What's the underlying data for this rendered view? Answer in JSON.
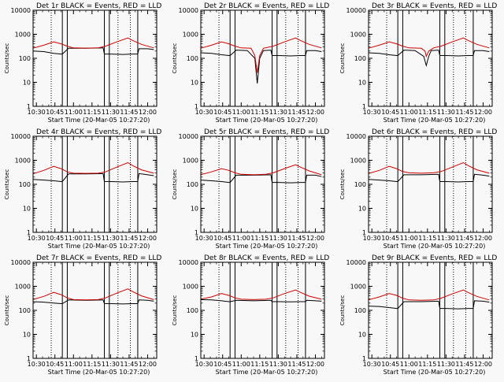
{
  "chart_data": [
    {
      "type": "line",
      "title": "Det 1r BLACK = Events, RED = LLD",
      "xlabel": "Start Time (20-Mar-05 10:27:20)",
      "ylabel": "Counts/sec",
      "x_ticks": [
        "10:30",
        "10:45",
        "11:00",
        "11:15",
        "11:30",
        "11:45",
        "12:00"
      ],
      "y_ticks": [
        "1",
        "10",
        "100",
        "1000",
        "10000"
      ],
      "y_scale": "log",
      "ylim": [
        1,
        10000
      ],
      "xlim": [
        "10:27:20",
        "12:07:20"
      ],
      "grid": false,
      "dotted_vlines": [
        "10:42",
        "11:36",
        "11:46"
      ],
      "solid_vlines": [
        "10:51",
        "10:55",
        "11:25",
        "11:29",
        "11:52"
      ],
      "series": [
        {
          "color": "#000000",
          "x": [
            "10:27",
            "10:36",
            "10:44",
            "10:50",
            "10:51",
            "10:56",
            "11:10",
            "11:24",
            "11:25",
            "11:30",
            "11:40",
            "11:48",
            "11:52",
            "11:53",
            "12:00",
            "12:05"
          ],
          "y": [
            200,
            190,
            160,
            150,
            150,
            260,
            260,
            270,
            150,
            150,
            145,
            150,
            150,
            250,
            250,
            230
          ]
        },
        {
          "color": "#cc0000",
          "x": [
            "10:27",
            "10:36",
            "10:44",
            "10:50",
            "10:55",
            "11:00",
            "11:10",
            "11:20",
            "11:26",
            "11:35",
            "11:44",
            "11:48",
            "11:55",
            "12:05"
          ],
          "y": [
            260,
            350,
            480,
            400,
            320,
            270,
            265,
            270,
            320,
            480,
            700,
            550,
            380,
            270
          ]
        }
      ]
    },
    {
      "type": "line",
      "title": "Det 2r BLACK = Events, RED = LLD",
      "xlabel": "Start Time (20-Mar-05 10:27:20)",
      "ylabel": "Counts/sec",
      "x_ticks": [
        "10:30",
        "10:45",
        "11:00",
        "11:15",
        "11:30",
        "11:45",
        "12:00"
      ],
      "y_ticks": [
        "1",
        "10",
        "100",
        "1000",
        "10000"
      ],
      "y_scale": "log",
      "ylim": [
        1,
        10000
      ],
      "xlim": [
        "10:27:20",
        "12:07:20"
      ],
      "grid": false,
      "dotted_vlines": [
        "10:42",
        "11:36",
        "11:46"
      ],
      "solid_vlines": [
        "10:51",
        "10:55",
        "11:25",
        "11:29",
        "11:52"
      ],
      "series": [
        {
          "color": "#000000",
          "x": [
            "10:27",
            "10:36",
            "10:44",
            "10:50",
            "10:51",
            "10:56",
            "11:05",
            "11:11",
            "11:13",
            "11:15",
            "11:18",
            "11:24",
            "11:25",
            "11:30",
            "11:40",
            "11:48",
            "11:52",
            "11:53",
            "12:00",
            "12:05"
          ],
          "y": [
            170,
            160,
            140,
            130,
            130,
            220,
            210,
            100,
            9,
            100,
            210,
            220,
            130,
            130,
            125,
            130,
            130,
            210,
            210,
            190
          ]
        },
        {
          "color": "#cc0000",
          "x": [
            "10:27",
            "10:36",
            "10:44",
            "10:50",
            "10:55",
            "11:00",
            "11:08",
            "11:11",
            "11:13",
            "11:15",
            "11:18",
            "11:26",
            "11:35",
            "11:44",
            "11:48",
            "11:55",
            "12:05"
          ],
          "y": [
            260,
            350,
            480,
            400,
            320,
            270,
            260,
            130,
            25,
            130,
            260,
            320,
            480,
            700,
            550,
            380,
            270
          ]
        }
      ]
    },
    {
      "type": "line",
      "title": "Det 3r BLACK = Events, RED = LLD",
      "xlabel": "Start Time (20-Mar-05 10:27:20)",
      "ylabel": "Counts/sec",
      "x_ticks": [
        "10:30",
        "10:45",
        "11:00",
        "11:15",
        "11:30",
        "11:45",
        "12:00"
      ],
      "y_ticks": [
        "1",
        "10",
        "100",
        "1000",
        "10000"
      ],
      "y_scale": "log",
      "ylim": [
        1,
        10000
      ],
      "xlim": [
        "10:27:20",
        "12:07:20"
      ],
      "grid": false,
      "dotted_vlines": [
        "10:42",
        "11:36",
        "11:46"
      ],
      "solid_vlines": [
        "10:51",
        "10:55",
        "11:25",
        "11:29",
        "11:52"
      ],
      "series": [
        {
          "color": "#000000",
          "x": [
            "10:27",
            "10:36",
            "10:44",
            "10:50",
            "10:51",
            "10:56",
            "11:05",
            "11:12",
            "11:14",
            "11:16",
            "11:18",
            "11:24",
            "11:25",
            "11:30",
            "11:40",
            "11:48",
            "11:52",
            "11:53",
            "12:00",
            "12:05"
          ],
          "y": [
            170,
            160,
            140,
            130,
            130,
            220,
            210,
            120,
            50,
            120,
            210,
            220,
            130,
            130,
            125,
            130,
            130,
            210,
            210,
            190
          ]
        },
        {
          "color": "#cc0000",
          "x": [
            "10:27",
            "10:36",
            "10:44",
            "10:50",
            "10:55",
            "11:00",
            "11:10",
            "11:13",
            "11:14",
            "11:16",
            "11:20",
            "11:26",
            "11:35",
            "11:44",
            "11:48",
            "11:55",
            "12:05"
          ],
          "y": [
            260,
            350,
            480,
            400,
            320,
            270,
            260,
            200,
            120,
            200,
            270,
            320,
            480,
            700,
            550,
            380,
            270
          ]
        }
      ]
    },
    {
      "type": "line",
      "title": "Det 4r BLACK = Events, RED = LLD",
      "xlabel": "Start Time (20-Mar-05 10:27:20)",
      "ylabel": "Counts/sec",
      "x_ticks": [
        "10:30",
        "10:45",
        "11:00",
        "11:15",
        "11:30",
        "11:45",
        "12:00"
      ],
      "y_ticks": [
        "1",
        "10",
        "100",
        "1000",
        "10000"
      ],
      "y_scale": "log",
      "ylim": [
        1,
        10000
      ],
      "xlim": [
        "10:27:20",
        "12:07:20"
      ],
      "grid": false,
      "dotted_vlines": [
        "10:42",
        "11:36",
        "11:46"
      ],
      "solid_vlines": [
        "10:51",
        "10:55",
        "11:25",
        "11:29",
        "11:52"
      ],
      "series": [
        {
          "color": "#000000",
          "x": [
            "10:27",
            "10:36",
            "10:44",
            "10:50",
            "10:51",
            "10:56",
            "11:10",
            "11:24",
            "11:25",
            "11:30",
            "11:40",
            "11:48",
            "11:52",
            "11:53",
            "12:00",
            "12:05"
          ],
          "y": [
            160,
            150,
            140,
            130,
            130,
            270,
            270,
            280,
            130,
            130,
            125,
            130,
            130,
            280,
            250,
            230
          ]
        },
        {
          "color": "#cc0000",
          "x": [
            "10:27",
            "10:36",
            "10:44",
            "10:50",
            "10:55",
            "11:00",
            "11:10",
            "11:20",
            "11:26",
            "11:35",
            "11:44",
            "11:48",
            "11:55",
            "12:05"
          ],
          "y": [
            270,
            380,
            560,
            450,
            330,
            290,
            285,
            290,
            330,
            520,
            800,
            600,
            400,
            290
          ]
        }
      ]
    },
    {
      "type": "line",
      "title": "Det 5r BLACK = Events, RED = LLD",
      "xlabel": "Start Time (20-Mar-05 10:27:20)",
      "ylabel": "Counts/sec",
      "x_ticks": [
        "10:30",
        "10:45",
        "11:00",
        "11:15",
        "11:30",
        "11:45",
        "12:00"
      ],
      "y_ticks": [
        "1",
        "10",
        "100",
        "1000",
        "10000"
      ],
      "y_scale": "log",
      "ylim": [
        1,
        10000
      ],
      "xlim": [
        "10:27:20",
        "12:07:20"
      ],
      "grid": false,
      "dotted_vlines": [
        "10:42",
        "11:36",
        "11:46"
      ],
      "solid_vlines": [
        "10:51",
        "10:55",
        "11:25",
        "11:29",
        "11:52"
      ],
      "series": [
        {
          "color": "#000000",
          "x": [
            "10:27",
            "10:36",
            "10:44",
            "10:50",
            "10:51",
            "10:56",
            "11:10",
            "11:24",
            "11:25",
            "11:30",
            "11:40",
            "11:48",
            "11:52",
            "11:53",
            "12:00",
            "12:05"
          ],
          "y": [
            150,
            140,
            130,
            120,
            120,
            240,
            240,
            250,
            120,
            120,
            115,
            120,
            120,
            240,
            240,
            210
          ]
        },
        {
          "color": "#cc0000",
          "x": [
            "10:27",
            "10:36",
            "10:44",
            "10:50",
            "10:55",
            "11:00",
            "11:10",
            "11:20",
            "11:26",
            "11:35",
            "11:44",
            "11:48",
            "11:55",
            "12:05"
          ],
          "y": [
            250,
            330,
            450,
            380,
            300,
            260,
            250,
            260,
            300,
            450,
            650,
            520,
            360,
            250
          ]
        }
      ]
    },
    {
      "type": "line",
      "title": "Det 6r BLACK = Events, RED = LLD",
      "xlabel": "Start Time (20-Mar-05 10:27:20)",
      "ylabel": "Counts/sec",
      "x_ticks": [
        "10:30",
        "10:45",
        "11:00",
        "11:15",
        "11:30",
        "11:45",
        "12:00"
      ],
      "y_ticks": [
        "1",
        "10",
        "100",
        "1000",
        "10000"
      ],
      "y_scale": "log",
      "ylim": [
        1,
        10000
      ],
      "xlim": [
        "10:27:20",
        "12:07:20"
      ],
      "grid": false,
      "dotted_vlines": [
        "10:42",
        "11:36",
        "11:46"
      ],
      "solid_vlines": [
        "10:51",
        "10:55",
        "11:25",
        "11:29",
        "11:52"
      ],
      "series": [
        {
          "color": "#000000",
          "x": [
            "10:27",
            "10:36",
            "10:44",
            "10:50",
            "10:51",
            "10:56",
            "11:10",
            "11:24",
            "11:25",
            "11:30",
            "11:40",
            "11:48",
            "11:52",
            "11:53",
            "12:00",
            "12:05"
          ],
          "y": [
            160,
            150,
            140,
            130,
            130,
            250,
            250,
            260,
            130,
            130,
            125,
            130,
            130,
            260,
            240,
            220
          ]
        },
        {
          "color": "#cc0000",
          "x": [
            "10:27",
            "10:36",
            "10:44",
            "10:50",
            "10:55",
            "11:00",
            "11:10",
            "11:20",
            "11:26",
            "11:35",
            "11:44",
            "11:48",
            "11:55",
            "12:05"
          ],
          "y": [
            280,
            380,
            560,
            450,
            340,
            300,
            290,
            300,
            340,
            520,
            800,
            600,
            400,
            290
          ]
        }
      ]
    },
    {
      "type": "line",
      "title": "Det 7r BLACK = Events, RED = LLD",
      "xlabel": "Start Time (20-Mar-05 10:27:20)",
      "ylabel": "Counts/sec",
      "x_ticks": [
        "10:30",
        "10:45",
        "11:00",
        "11:15",
        "11:30",
        "11:45",
        "12:00"
      ],
      "y_ticks": [
        "1",
        "10",
        "100",
        "1000",
        "10000"
      ],
      "y_scale": "log",
      "ylim": [
        1,
        10000
      ],
      "xlim": [
        "10:27:20",
        "12:07:20"
      ],
      "grid": false,
      "dotted_vlines": [
        "10:42",
        "11:36",
        "11:46"
      ],
      "solid_vlines": [
        "10:51",
        "10:55",
        "11:25",
        "11:29",
        "11:52"
      ],
      "series": [
        {
          "color": "#000000",
          "x": [
            "10:27",
            "10:36",
            "10:44",
            "10:50",
            "10:51",
            "10:56",
            "11:10",
            "11:24",
            "11:25",
            "11:30",
            "11:40",
            "11:48",
            "11:52",
            "11:53",
            "12:00",
            "12:05"
          ],
          "y": [
            230,
            220,
            200,
            190,
            190,
            270,
            260,
            270,
            190,
            190,
            185,
            190,
            190,
            270,
            260,
            240
          ]
        },
        {
          "color": "#cc0000",
          "x": [
            "10:27",
            "10:36",
            "10:44",
            "10:50",
            "10:55",
            "11:00",
            "11:10",
            "11:20",
            "11:26",
            "11:35",
            "11:44",
            "11:48",
            "11:55",
            "12:05"
          ],
          "y": [
            280,
            380,
            560,
            450,
            330,
            280,
            270,
            280,
            330,
            520,
            780,
            600,
            400,
            280
          ]
        }
      ]
    },
    {
      "type": "line",
      "title": "Det 8r BLACK = Events, RED = LLD",
      "xlabel": "Start Time (20-Mar-05 10:27:20)",
      "ylabel": "Counts/sec",
      "x_ticks": [
        "10:30",
        "10:45",
        "11:00",
        "11:15",
        "11:30",
        "11:45",
        "12:00"
      ],
      "y_ticks": [
        "1",
        "10",
        "100",
        "1000",
        "10000"
      ],
      "y_scale": "log",
      "ylim": [
        1,
        10000
      ],
      "xlim": [
        "10:27:20",
        "12:07:20"
      ],
      "grid": false,
      "dotted_vlines": [
        "10:42",
        "11:36",
        "11:46"
      ],
      "solid_vlines": [
        "10:51",
        "10:55",
        "11:25",
        "11:29",
        "11:52"
      ],
      "series": [
        {
          "color": "#000000",
          "x": [
            "10:27",
            "10:36",
            "10:44",
            "10:50",
            "10:51",
            "10:56",
            "11:10",
            "11:24",
            "11:25",
            "11:30",
            "11:40",
            "11:48",
            "11:52",
            "11:53",
            "12:00",
            "12:05"
          ],
          "y": [
            280,
            270,
            250,
            230,
            230,
            260,
            250,
            260,
            230,
            230,
            225,
            230,
            230,
            260,
            250,
            240
          ]
        },
        {
          "color": "#cc0000",
          "x": [
            "10:27",
            "10:36",
            "10:44",
            "10:50",
            "10:55",
            "11:00",
            "11:10",
            "11:20",
            "11:26",
            "11:35",
            "11:44",
            "11:48",
            "11:55",
            "12:05"
          ],
          "y": [
            290,
            360,
            500,
            420,
            330,
            290,
            280,
            290,
            330,
            500,
            700,
            560,
            390,
            290
          ]
        }
      ]
    },
    {
      "type": "line",
      "title": "Det 9r BLACK = Events, RED = LLD",
      "xlabel": "Start Time (20-Mar-05 10:27:20)",
      "ylabel": "Counts/sec",
      "x_ticks": [
        "10:30",
        "10:45",
        "11:00",
        "11:15",
        "11:30",
        "11:45",
        "12:00"
      ],
      "y_ticks": [
        "1",
        "10",
        "100",
        "1000",
        "10000"
      ],
      "y_scale": "log",
      "ylim": [
        1,
        10000
      ],
      "xlim": [
        "10:27:20",
        "12:07:20"
      ],
      "grid": false,
      "dotted_vlines": [
        "10:42",
        "11:36",
        "11:46"
      ],
      "solid_vlines": [
        "10:51",
        "10:55",
        "11:25",
        "11:29",
        "11:52"
      ],
      "series": [
        {
          "color": "#000000",
          "x": [
            "10:27",
            "10:36",
            "10:44",
            "10:50",
            "10:51",
            "10:56",
            "11:10",
            "11:24",
            "11:25",
            "11:30",
            "11:40",
            "11:48",
            "11:52",
            "11:53",
            "12:00",
            "12:05"
          ],
          "y": [
            150,
            145,
            130,
            120,
            120,
            230,
            230,
            240,
            120,
            120,
            115,
            120,
            120,
            250,
            240,
            220
          ]
        },
        {
          "color": "#cc0000",
          "x": [
            "10:27",
            "10:36",
            "10:44",
            "10:50",
            "10:55",
            "11:00",
            "11:10",
            "11:20",
            "11:26",
            "11:35",
            "11:44",
            "11:48",
            "11:55",
            "12:05"
          ],
          "y": [
            270,
            360,
            500,
            420,
            320,
            270,
            260,
            270,
            320,
            480,
            700,
            550,
            380,
            270
          ]
        }
      ]
    }
  ]
}
